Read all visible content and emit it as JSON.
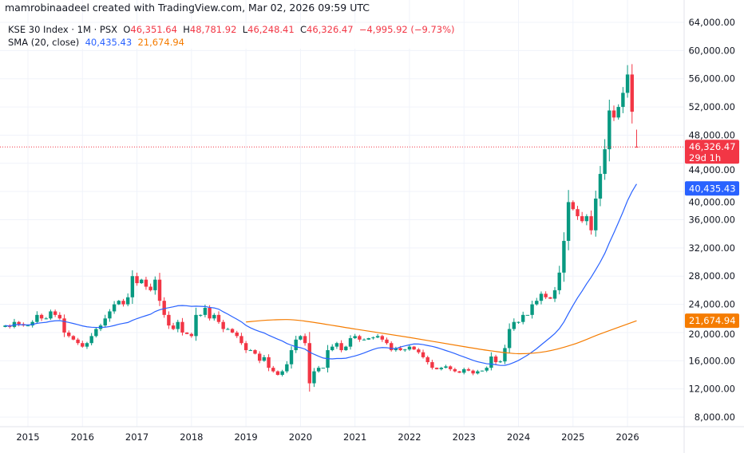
{
  "credit": "mamrobinaadeel created with TradingView.com, Mar 02, 2026 09:59 UTC",
  "legend": {
    "symbol": "KSE 30 Index · 1M · PSX",
    "o_label": "O",
    "o": "46,351.64",
    "h_label": "H",
    "h": "48,781.92",
    "l_label": "L",
    "l": "46,248.41",
    "c_label": "C",
    "c": "46,326.47",
    "change": "−4,995.92 (−9.73%)",
    "sma_label": "SMA (20, close)",
    "sma1": "40,435.43",
    "sma2": "21,674.94"
  },
  "colors": {
    "up": "#089981",
    "down": "#f23645",
    "sma1": "#2962ff",
    "sma2": "#f57c00",
    "grid": "#f0f3fa"
  },
  "chart_data": {
    "type": "candlestick",
    "interval": "1M",
    "start_month": "2014-08",
    "closes": [
      21000,
      20800,
      21500,
      21200,
      21000,
      21000,
      21500,
      22500,
      22000,
      22000,
      23000,
      22500,
      22000,
      20000,
      19500,
      19000,
      18500,
      18000,
      18500,
      19500,
      20500,
      21000,
      22000,
      23000,
      24000,
      24500,
      24000,
      25000,
      28000,
      27000,
      27500,
      26500,
      26000,
      27500,
      24500,
      22500,
      21000,
      20500,
      21500,
      20000,
      19800,
      19500,
      22500,
      22500,
      23500,
      22000,
      22500,
      21500,
      20500,
      20500,
      20000,
      19500,
      18500,
      17500,
      17500,
      17000,
      16000,
      16500,
      15000,
      14500,
      14000,
      14500,
      15500,
      17500,
      19000,
      19500,
      18500,
      12800,
      14500,
      15000,
      15000,
      17500,
      18000,
      18500,
      17500,
      18000,
      19200,
      19500,
      19000,
      19000,
      19200,
      19300,
      19500,
      19000,
      18500,
      17500,
      17800,
      17500,
      17600,
      18000,
      17600,
      17200,
      16500,
      15800,
      15000,
      14800,
      15000,
      15200,
      14800,
      14500,
      14300,
      14800,
      14600,
      14200,
      14500,
      14600,
      15000,
      16600,
      15800,
      15900,
      17800,
      20500,
      21500,
      21500,
      22500,
      22500,
      24000,
      24500,
      25500,
      25000,
      24800,
      26000,
      28500,
      33000,
      38500,
      37500,
      36500,
      35800,
      36500,
      34500,
      39000,
      42500,
      46000,
      51500,
      50500,
      52000,
      54000,
      56600,
      51322.39,
      46326.47
    ],
    "last_candle": {
      "open": 46351.64,
      "high": 48781.92,
      "low": 46248.41,
      "close": 46326.47
    },
    "sma2_series": [
      [
        "2019-01",
        21500
      ],
      [
        "2019-07",
        21800
      ],
      [
        "2020-01",
        21700
      ],
      [
        "2021-01",
        20500
      ],
      [
        "2022-01",
        19300
      ],
      [
        "2023-01",
        18000
      ],
      [
        "2023-07",
        17400
      ],
      [
        "2024-01",
        17000
      ],
      [
        "2024-07",
        17300
      ],
      [
        "2025-01",
        18300
      ],
      [
        "2025-07",
        19800
      ],
      [
        "2026-03",
        21674.94
      ]
    ],
    "x_ticks": [
      "2015",
      "2016",
      "2017",
      "2018",
      "2019",
      "2020",
      "2021",
      "2022",
      "2023",
      "2024",
      "2025",
      "2026"
    ],
    "y_ticks": [
      "64,000.00",
      "60,000.00",
      "56,000.00",
      "52,000.00",
      "48,000.00",
      "44,000.00",
      "40,000.00",
      "36,000.00",
      "32,000.00",
      "28,000.00",
      "24,000.00",
      "20,000.00",
      "16,000.00",
      "12,000.00",
      "8,000.00"
    ],
    "ylim": [
      8000,
      64000
    ],
    "price_labels": {
      "last": "46,326.47",
      "countdown": "29d 1h",
      "sma1": "40,435.43",
      "sma2": "21,674.94"
    },
    "grid": true
  }
}
